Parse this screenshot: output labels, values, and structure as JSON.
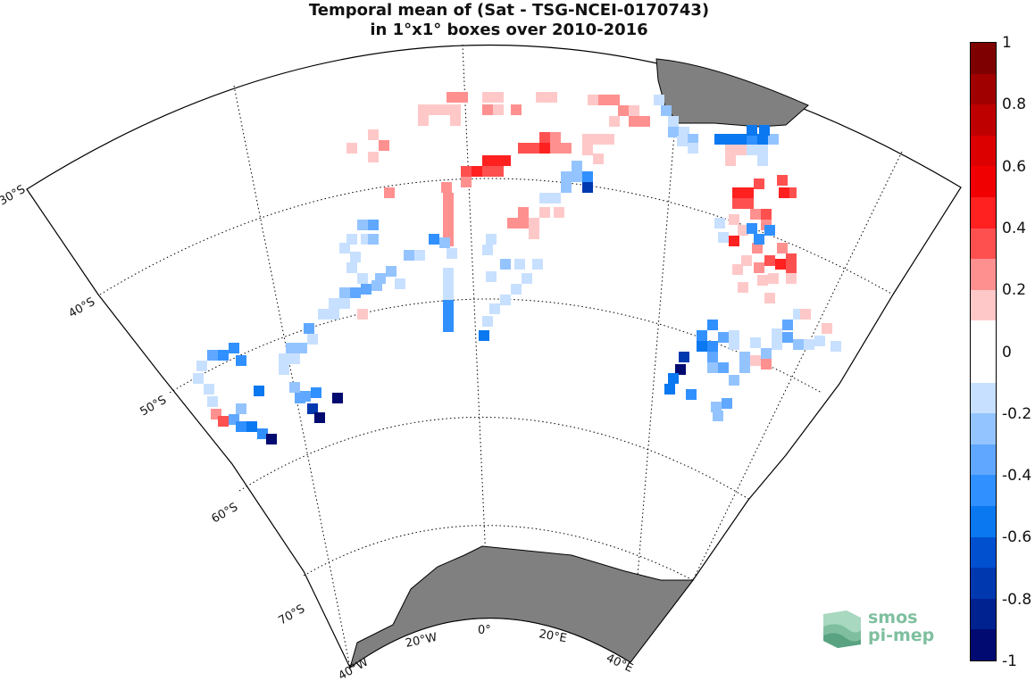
{
  "title": {
    "line1": "Temporal mean of (Sat - TSG-NCEI-0170743)",
    "line2": "in 1°x1° boxes over 2010-2016"
  },
  "map": {
    "projection": "polar-stereographic-sector",
    "region": "South Atlantic / Southern Ocean",
    "land_color": "#808080",
    "graticule_style": "dotted",
    "latitude_labels": [
      "30°S",
      "40°S",
      "50°S",
      "60°S",
      "70°S"
    ],
    "longitude_labels": [
      "40°W",
      "20°W",
      "0°",
      "20°E",
      "40°E"
    ]
  },
  "colorbar": {
    "min": -1,
    "max": 1,
    "tick_labels": [
      "1",
      "0.8",
      "0.6",
      "0.4",
      "0.2",
      "0",
      "-0.2",
      "-0.4",
      "-0.6",
      "-0.8",
      "-1"
    ],
    "bins_top_to_bottom": [
      "#7f0000",
      "#a00000",
      "#bf0000",
      "#dd0000",
      "#f00000",
      "#ff2020",
      "#ff5050",
      "#ff9090",
      "#ffc8c8",
      "#ffffff",
      "#ffffff",
      "#c8e0ff",
      "#94c4ff",
      "#60a8ff",
      "#3090ff",
      "#0a78f0",
      "#0050d0",
      "#0038b0",
      "#002290",
      "#000a70"
    ]
  },
  "logo": {
    "line1": "smos",
    "line2": "pi-mep"
  }
}
